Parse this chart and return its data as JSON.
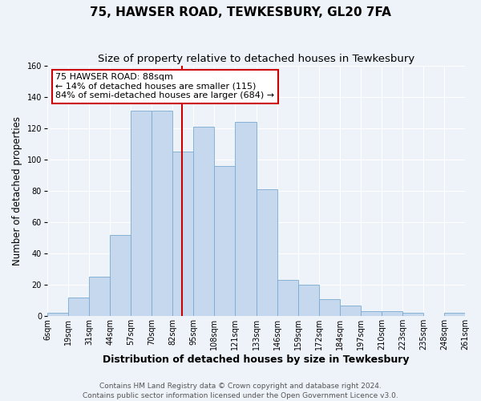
{
  "title": "75, HAWSER ROAD, TEWKESBURY, GL20 7FA",
  "subtitle": "Size of property relative to detached houses in Tewkesbury",
  "xlabel": "Distribution of detached houses by size in Tewkesbury",
  "ylabel": "Number of detached properties",
  "bar_labels": [
    "6sqm",
    "19sqm",
    "31sqm",
    "44sqm",
    "57sqm",
    "70sqm",
    "82sqm",
    "95sqm",
    "108sqm",
    "121sqm",
    "133sqm",
    "146sqm",
    "159sqm",
    "172sqm",
    "184sqm",
    "197sqm",
    "210sqm",
    "223sqm",
    "235sqm",
    "248sqm",
    "261sqm"
  ],
  "bar_heights": [
    2,
    12,
    25,
    52,
    131,
    131,
    105,
    121,
    96,
    124,
    81,
    23,
    20,
    11,
    7,
    3,
    3,
    2,
    0,
    2
  ],
  "bar_color": "#c5d8ee",
  "bar_edge_color": "#7aaad0",
  "vline_x": 6,
  "vline_color": "#cc0000",
  "annotation_title": "75 HAWSER ROAD: 88sqm",
  "annotation_line1": "← 14% of detached houses are smaller (115)",
  "annotation_line2": "84% of semi-detached houses are larger (684) →",
  "annotation_box_color": "#ffffff",
  "annotation_border_color": "#cc0000",
  "ylim": [
    0,
    160
  ],
  "yticks": [
    0,
    20,
    40,
    60,
    80,
    100,
    120,
    140,
    160
  ],
  "footer_line1": "Contains HM Land Registry data © Crown copyright and database right 2024.",
  "footer_line2": "Contains public sector information licensed under the Open Government Licence v3.0.",
  "background_color": "#eef2f9",
  "plot_bg_color": "#eef2f9",
  "grid_color": "#ffffff",
  "title_fontsize": 11,
  "subtitle_fontsize": 9.5,
  "xlabel_fontsize": 9,
  "ylabel_fontsize": 8.5,
  "tick_fontsize": 7,
  "annotation_fontsize": 8,
  "footer_fontsize": 6.5
}
